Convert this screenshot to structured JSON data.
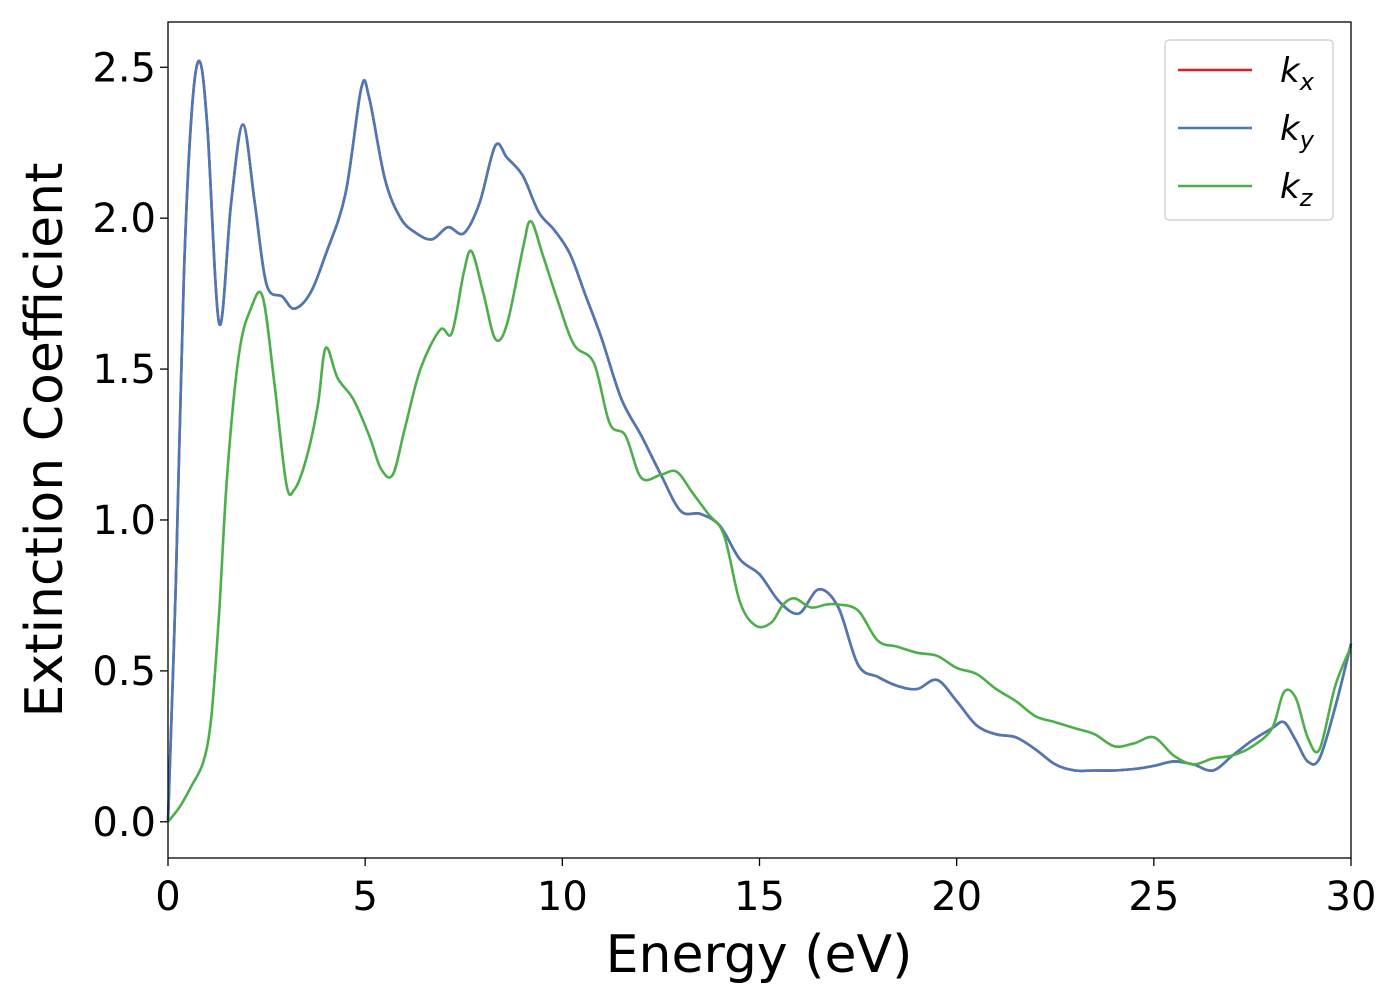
{
  "chart_data": {
    "type": "line",
    "xlabel": "Energy (eV)",
    "ylabel": "Extinction Coefficient",
    "xlim": [
      0,
      30
    ],
    "ylim": [
      -0.12,
      2.65
    ],
    "xticks": [
      0,
      5,
      10,
      15,
      20,
      25,
      30
    ],
    "xtick_labels": [
      "0",
      "5",
      "10",
      "15",
      "20",
      "25",
      "30"
    ],
    "yticks": [
      0.0,
      0.5,
      1.0,
      1.5,
      2.0,
      2.5
    ],
    "ytick_labels": [
      "0.0",
      "0.5",
      "1.0",
      "1.5",
      "2.0",
      "2.5"
    ],
    "grid": false,
    "legend_position": "top-right",
    "series": [
      {
        "name": "k",
        "sub": "x",
        "color": "#e41a1c",
        "x": [
          0,
          0.2,
          0.4,
          0.6,
          0.8,
          1.0,
          1.3,
          1.6,
          1.9,
          2.2,
          2.5,
          2.9,
          3.2,
          3.6,
          4.0,
          4.5,
          4.9,
          5.1,
          5.5,
          5.9,
          6.3,
          6.7,
          7.1,
          7.5,
          7.9,
          8.3,
          8.6,
          9.0,
          9.4,
          9.8,
          10.2,
          10.6,
          11.0,
          11.5,
          12.0,
          12.5,
          13.0,
          13.5,
          14.0,
          14.5,
          15.0,
          15.5,
          16.0,
          16.5,
          17.0,
          17.5,
          18.0,
          18.5,
          19.0,
          19.5,
          20.0,
          20.5,
          21.0,
          21.5,
          22.0,
          22.5,
          23.0,
          23.5,
          24.0,
          24.5,
          25.0,
          25.5,
          26.0,
          26.5,
          27.0,
          27.5,
          28.0,
          28.3,
          28.6,
          28.9,
          29.2,
          29.6,
          30.0
        ],
        "y": [
          0.0,
          0.8,
          1.8,
          2.35,
          2.52,
          2.3,
          1.65,
          2.05,
          2.31,
          2.05,
          1.78,
          1.74,
          1.7,
          1.75,
          1.88,
          2.08,
          2.43,
          2.4,
          2.13,
          2.0,
          1.95,
          1.93,
          1.97,
          1.95,
          2.05,
          2.24,
          2.2,
          2.14,
          2.02,
          1.96,
          1.88,
          1.74,
          1.6,
          1.4,
          1.28,
          1.15,
          1.03,
          1.02,
          0.98,
          0.87,
          0.82,
          0.73,
          0.69,
          0.77,
          0.71,
          0.52,
          0.48,
          0.45,
          0.44,
          0.47,
          0.4,
          0.32,
          0.29,
          0.28,
          0.24,
          0.19,
          0.17,
          0.17,
          0.17,
          0.175,
          0.185,
          0.2,
          0.19,
          0.17,
          0.22,
          0.27,
          0.31,
          0.33,
          0.27,
          0.2,
          0.21,
          0.38,
          0.59
        ]
      },
      {
        "name": "k",
        "sub": "y",
        "color": "#4a7ab5",
        "x": [
          0,
          0.2,
          0.4,
          0.6,
          0.8,
          1.0,
          1.3,
          1.6,
          1.9,
          2.2,
          2.5,
          2.9,
          3.2,
          3.6,
          4.0,
          4.5,
          4.9,
          5.1,
          5.5,
          5.9,
          6.3,
          6.7,
          7.1,
          7.5,
          7.9,
          8.3,
          8.6,
          9.0,
          9.4,
          9.8,
          10.2,
          10.6,
          11.0,
          11.5,
          12.0,
          12.5,
          13.0,
          13.5,
          14.0,
          14.5,
          15.0,
          15.5,
          16.0,
          16.5,
          17.0,
          17.5,
          18.0,
          18.5,
          19.0,
          19.5,
          20.0,
          20.5,
          21.0,
          21.5,
          22.0,
          22.5,
          23.0,
          23.5,
          24.0,
          24.5,
          25.0,
          25.5,
          26.0,
          26.5,
          27.0,
          27.5,
          28.0,
          28.3,
          28.6,
          28.9,
          29.2,
          29.6,
          30.0
        ],
        "y": [
          0.0,
          0.8,
          1.8,
          2.35,
          2.52,
          2.3,
          1.65,
          2.05,
          2.31,
          2.05,
          1.78,
          1.74,
          1.7,
          1.75,
          1.88,
          2.08,
          2.43,
          2.4,
          2.13,
          2.0,
          1.95,
          1.93,
          1.97,
          1.95,
          2.05,
          2.24,
          2.2,
          2.14,
          2.02,
          1.96,
          1.88,
          1.74,
          1.6,
          1.4,
          1.28,
          1.15,
          1.03,
          1.02,
          0.98,
          0.87,
          0.82,
          0.73,
          0.69,
          0.77,
          0.71,
          0.52,
          0.48,
          0.45,
          0.44,
          0.47,
          0.4,
          0.32,
          0.29,
          0.28,
          0.24,
          0.19,
          0.17,
          0.17,
          0.17,
          0.175,
          0.185,
          0.2,
          0.19,
          0.17,
          0.22,
          0.27,
          0.31,
          0.33,
          0.27,
          0.2,
          0.21,
          0.38,
          0.59
        ]
      },
      {
        "name": "k",
        "sub": "z",
        "color": "#4daf4a",
        "x": [
          0,
          0.3,
          0.6,
          0.9,
          1.1,
          1.3,
          1.5,
          1.8,
          2.1,
          2.4,
          2.7,
          3.0,
          3.2,
          3.5,
          3.8,
          4.0,
          4.3,
          4.7,
          5.1,
          5.4,
          5.7,
          6.0,
          6.4,
          6.9,
          7.2,
          7.5,
          7.7,
          8.0,
          8.3,
          8.6,
          9.0,
          9.2,
          9.5,
          9.9,
          10.3,
          10.8,
          11.2,
          11.6,
          12.0,
          12.5,
          12.9,
          13.3,
          13.7,
          14.1,
          14.5,
          14.9,
          15.3,
          15.6,
          15.9,
          16.3,
          16.7,
          17.0,
          17.5,
          18.0,
          18.5,
          19.0,
          19.5,
          20.0,
          20.5,
          21.0,
          21.5,
          22.0,
          22.5,
          23.0,
          23.5,
          24.0,
          24.5,
          25.0,
          25.5,
          26.0,
          26.5,
          27.0,
          27.5,
          28.0,
          28.3,
          28.6,
          28.9,
          29.2,
          29.6,
          30.0
        ],
        "y": [
          0.0,
          0.05,
          0.12,
          0.2,
          0.35,
          0.7,
          1.15,
          1.55,
          1.7,
          1.74,
          1.45,
          1.12,
          1.1,
          1.2,
          1.38,
          1.57,
          1.47,
          1.4,
          1.28,
          1.17,
          1.15,
          1.3,
          1.5,
          1.63,
          1.62,
          1.82,
          1.89,
          1.75,
          1.6,
          1.65,
          1.9,
          1.99,
          1.88,
          1.72,
          1.58,
          1.52,
          1.32,
          1.28,
          1.14,
          1.15,
          1.16,
          1.09,
          1.02,
          0.95,
          0.73,
          0.65,
          0.66,
          0.72,
          0.74,
          0.71,
          0.72,
          0.72,
          0.7,
          0.6,
          0.58,
          0.56,
          0.55,
          0.51,
          0.49,
          0.44,
          0.4,
          0.35,
          0.33,
          0.31,
          0.29,
          0.25,
          0.26,
          0.28,
          0.22,
          0.19,
          0.21,
          0.22,
          0.25,
          0.31,
          0.43,
          0.41,
          0.28,
          0.24,
          0.45,
          0.58
        ]
      }
    ]
  }
}
